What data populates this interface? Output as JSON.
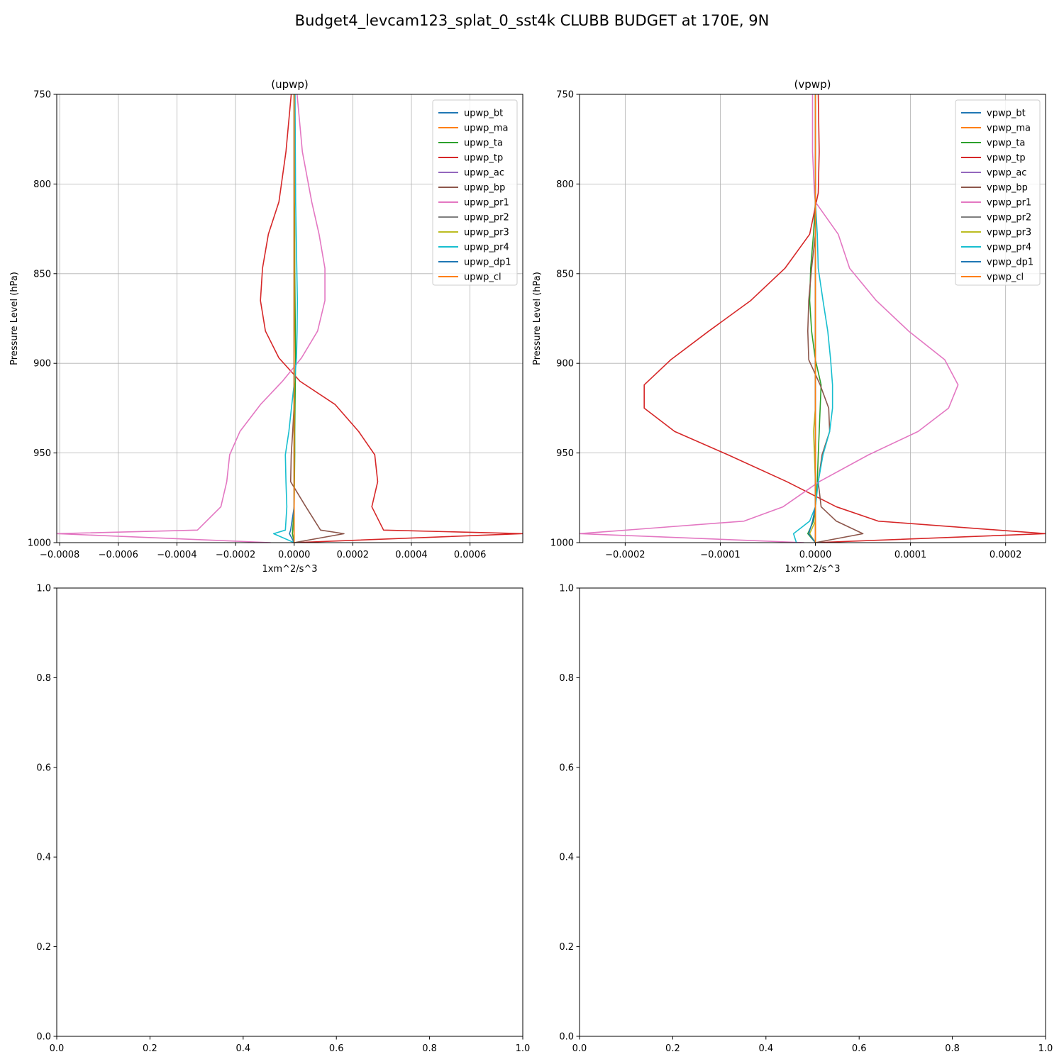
{
  "suptitle": "Budget4_levcam123_splat_0_sst4k CLUBB BUDGET at 170E, 9N",
  "chart_data": [
    {
      "type": "line",
      "title": "(upwp)",
      "xlabel": "1xm^2/s^3",
      "ylabel": "Pressure Level (hPa)",
      "xlim": [
        -0.00081,
        0.00078
      ],
      "ylim": [
        1000,
        750
      ],
      "y_inverted": true,
      "grid": true,
      "legend": "top-right",
      "xticks": [
        -0.0008,
        -0.0006,
        -0.0004,
        -0.0002,
        0.0,
        0.0002,
        0.0004,
        0.0006
      ],
      "xtick_labels": [
        "−0.0008",
        "−0.0006",
        "−0.0004",
        "−0.0002",
        "0.0000",
        "0.0002",
        "0.0004",
        "0.0006"
      ],
      "yticks": [
        750,
        800,
        850,
        900,
        950,
        1000
      ],
      "ytick_labels": [
        "750",
        "800",
        "850",
        "900",
        "950",
        "1000"
      ],
      "levels": [
        750,
        782,
        810,
        828,
        847,
        865,
        882,
        897,
        910,
        923,
        938,
        951,
        966,
        980,
        993,
        995,
        1000
      ],
      "series": [
        {
          "name": "upwp_bt",
          "color": "#1f77b4",
          "values": [
            0,
            0,
            0,
            0,
            0,
            0,
            0,
            0,
            0,
            0,
            0,
            0,
            0,
            0,
            0,
            0,
            0
          ]
        },
        {
          "name": "upwp_ma",
          "color": "#ff7f0e",
          "values": [
            0,
            0,
            0,
            0,
            0,
            0,
            0,
            0,
            0,
            0,
            0,
            0,
            0,
            0,
            0,
            0,
            0
          ]
        },
        {
          "name": "upwp_ta",
          "color": "#2ca02c",
          "values": [
            1e-06,
            1e-06,
            1e-06,
            2e-06,
            2e-06,
            3e-06,
            4e-06,
            5e-06,
            4e-06,
            3e-06,
            2e-06,
            2e-06,
            1e-06,
            0,
            -5e-06,
            -6e-06,
            0
          ]
        },
        {
          "name": "upwp_tp",
          "color": "#d62728",
          "values": [
            -1e-05,
            -2.8e-05,
            -5.2e-05,
            -8.8e-05,
            -0.000108,
            -0.000115,
            -9.8e-05,
            -5.2e-05,
            2e-05,
            0.00014,
            0.00022,
            0.000275,
            0.000285,
            0.000265,
            0.000305,
            0.00078,
            0
          ]
        },
        {
          "name": "upwp_ac",
          "color": "#9467bd",
          "values": [
            0,
            0,
            0,
            0,
            0,
            0,
            0,
            0,
            0,
            0,
            0,
            0,
            0,
            0,
            0,
            0,
            0
          ]
        },
        {
          "name": "upwp_bp",
          "color": "#8c564b",
          "values": [
            0,
            0,
            0,
            0,
            0,
            0,
            0,
            0,
            0,
            0,
            -5e-06,
            -1e-05,
            -1.2e-05,
            4e-05,
            9e-05,
            0.00017,
            0
          ]
        },
        {
          "name": "upwp_pr1",
          "color": "#e377c2",
          "values": [
            1e-05,
            2.8e-05,
            6e-05,
            8.5e-05,
            0.000105,
            0.000105,
            8e-05,
            2.5e-05,
            -4e-05,
            -0.000115,
            -0.000185,
            -0.00022,
            -0.00023,
            -0.00025,
            -0.00033,
            -0.00081,
            -8e-05
          ]
        },
        {
          "name": "upwp_pr2",
          "color": "#7f7f7f",
          "values": [
            0,
            0,
            0,
            0,
            0,
            0,
            0,
            0,
            0,
            0,
            0,
            0,
            0,
            0,
            0,
            0,
            0
          ]
        },
        {
          "name": "upwp_pr3",
          "color": "#bcbd22",
          "values": [
            0,
            0,
            0,
            0,
            0,
            0,
            0,
            0,
            0,
            0,
            0,
            0,
            0,
            0,
            0,
            0,
            0
          ]
        },
        {
          "name": "upwp_pr4",
          "color": "#17becf",
          "values": [
            3e-06,
            4e-06,
            5e-06,
            7e-06,
            9e-06,
            1.1e-05,
            1e-05,
            8e-06,
            1e-06,
            -8e-06,
            -1.8e-05,
            -3e-05,
            -2.8e-05,
            -2.5e-05,
            -3e-05,
            -7e-05,
            0
          ]
        },
        {
          "name": "upwp_dp1",
          "color": "#1f77b4",
          "values": [
            0,
            0,
            0,
            0,
            0,
            0,
            0,
            0,
            0,
            0,
            0,
            0,
            0,
            0,
            -1.2e-05,
            -1.6e-05,
            0
          ]
        },
        {
          "name": "upwp_cl",
          "color": "#ff7f0e",
          "values": [
            0,
            0,
            0,
            0,
            0,
            0,
            0,
            0,
            0,
            0,
            0,
            0,
            0,
            0,
            0,
            0,
            0
          ]
        }
      ]
    },
    {
      "type": "line",
      "title": "(vpwp)",
      "xlabel": "1xm^2/s^3",
      "ylabel": "Pressure Level (hPa)",
      "xlim": [
        -0.000248,
        0.000242
      ],
      "ylim": [
        1000,
        750
      ],
      "y_inverted": true,
      "grid": true,
      "legend": "top-right",
      "xticks": [
        -0.0002,
        -0.0001,
        0.0,
        0.0001,
        0.0002
      ],
      "xtick_labels": [
        "−0.0002",
        "−0.0001",
        "0.0000",
        "0.0001",
        "0.0002"
      ],
      "yticks": [
        750,
        800,
        850,
        900,
        950,
        1000
      ],
      "ytick_labels": [
        "750",
        "800",
        "850",
        "900",
        "950",
        "1000"
      ],
      "levels": [
        750,
        782,
        805,
        810,
        828,
        847,
        865,
        882,
        898,
        912,
        925,
        938,
        951,
        966,
        980,
        988,
        995,
        1000
      ],
      "series": [
        {
          "name": "vpwp_bt",
          "color": "#1f77b4",
          "values": [
            0,
            0,
            0,
            0,
            0,
            0,
            0,
            0,
            0,
            0,
            0,
            0,
            0,
            0,
            0,
            0,
            0,
            0
          ]
        },
        {
          "name": "vpwp_ma",
          "color": "#ff7f0e",
          "values": [
            0,
            0,
            0,
            0,
            0,
            0,
            0,
            0,
            0,
            0,
            0,
            0,
            0,
            0,
            0,
            0,
            0,
            0
          ]
        },
        {
          "name": "vpwp_ta",
          "color": "#2ca02c",
          "values": [
            0,
            0,
            0,
            0,
            -2e-06,
            -5e-06,
            -6e-06,
            -4e-06,
            0,
            6e-06,
            5e-06,
            4e-06,
            3e-06,
            2e-06,
            0,
            -2e-06,
            -8e-06,
            0
          ]
        },
        {
          "name": "vpwp_tp",
          "color": "#d62728",
          "values": [
            3e-06,
            4e-06,
            3e-06,
            1e-06,
            -6e-06,
            -3.2e-05,
            -6.8e-05,
            -0.000112,
            -0.000152,
            -0.00018,
            -0.00018,
            -0.000148,
            -9.2e-05,
            -3e-05,
            2.2e-05,
            6.6e-05,
            0.000242,
            0
          ]
        },
        {
          "name": "vpwp_ac",
          "color": "#9467bd",
          "values": [
            0,
            0,
            0,
            0,
            0,
            0,
            0,
            0,
            0,
            0,
            0,
            0,
            0,
            0,
            0,
            0,
            0,
            0
          ]
        },
        {
          "name": "vpwp_bp",
          "color": "#8c564b",
          "values": [
            0,
            0,
            0,
            0,
            0,
            -4e-06,
            -7e-06,
            -8e-06,
            -7e-06,
            5e-06,
            1.4e-05,
            1.5e-05,
            7e-06,
            3e-06,
            6e-06,
            2.2e-05,
            5e-05,
            0
          ]
        },
        {
          "name": "vpwp_pr1",
          "color": "#e377c2",
          "values": [
            -3e-06,
            -3e-06,
            -1e-06,
            0,
            2.4e-05,
            3.6e-05,
            6.4e-05,
            9.8e-05,
            0.000136,
            0.00015,
            0.00014,
            0.000108,
            5.6e-05,
            4e-06,
            -3.4e-05,
            -7.5e-05,
            -0.000248,
            -1.2e-05
          ]
        },
        {
          "name": "vpwp_pr2",
          "color": "#7f7f7f",
          "values": [
            0,
            0,
            0,
            0,
            0,
            0,
            0,
            0,
            0,
            0,
            0,
            0,
            0,
            0,
            0,
            0,
            0,
            0
          ]
        },
        {
          "name": "vpwp_pr3",
          "color": "#bcbd22",
          "values": [
            0,
            0,
            0,
            0,
            0,
            0,
            0,
            0,
            0,
            0,
            0,
            -2e-06,
            -1e-06,
            0,
            0,
            0,
            -6e-06,
            0
          ]
        },
        {
          "name": "vpwp_pr4",
          "color": "#17becf",
          "values": [
            0,
            0,
            0,
            0,
            2e-06,
            3e-06,
            8e-06,
            1.3e-05,
            1.6e-05,
            1.8e-05,
            1.8e-05,
            1.5e-05,
            8e-06,
            3e-06,
            0,
            -6e-06,
            -2.3e-05,
            -2e-05
          ]
        },
        {
          "name": "vpwp_dp1",
          "color": "#1f77b4",
          "values": [
            0,
            0,
            0,
            0,
            0,
            0,
            0,
            0,
            0,
            0,
            0,
            0,
            0,
            0,
            0,
            -3e-06,
            -7e-06,
            0
          ]
        },
        {
          "name": "vpwp_cl",
          "color": "#ff7f0e",
          "values": [
            0,
            0,
            0,
            0,
            0,
            0,
            0,
            0,
            0,
            0,
            0,
            0,
            0,
            0,
            0,
            0,
            0,
            0
          ]
        }
      ]
    },
    {
      "type": "line",
      "title": "",
      "xlim": [
        0.0,
        1.0
      ],
      "ylim": [
        0.0,
        1.0
      ],
      "grid": false,
      "xticks": [
        0.0,
        0.2,
        0.4,
        0.6,
        0.8,
        1.0
      ],
      "xtick_labels": [
        "0.0",
        "0.2",
        "0.4",
        "0.6",
        "0.8",
        "1.0"
      ],
      "yticks": [
        0.0,
        0.2,
        0.4,
        0.6,
        0.8,
        1.0
      ],
      "ytick_labels": [
        "0.0",
        "0.2",
        "0.4",
        "0.6",
        "0.8",
        "1.0"
      ],
      "series": []
    },
    {
      "type": "line",
      "title": "",
      "xlim": [
        0.0,
        1.0
      ],
      "ylim": [
        0.0,
        1.0
      ],
      "grid": false,
      "xticks": [
        0.0,
        0.2,
        0.4,
        0.6,
        0.8,
        1.0
      ],
      "xtick_labels": [
        "0.0",
        "0.2",
        "0.4",
        "0.6",
        "0.8",
        "1.0"
      ],
      "yticks": [
        0.0,
        0.2,
        0.4,
        0.6,
        0.8,
        1.0
      ],
      "ytick_labels": [
        "0.0",
        "0.2",
        "0.4",
        "0.6",
        "0.8",
        "1.0"
      ],
      "series": []
    }
  ]
}
